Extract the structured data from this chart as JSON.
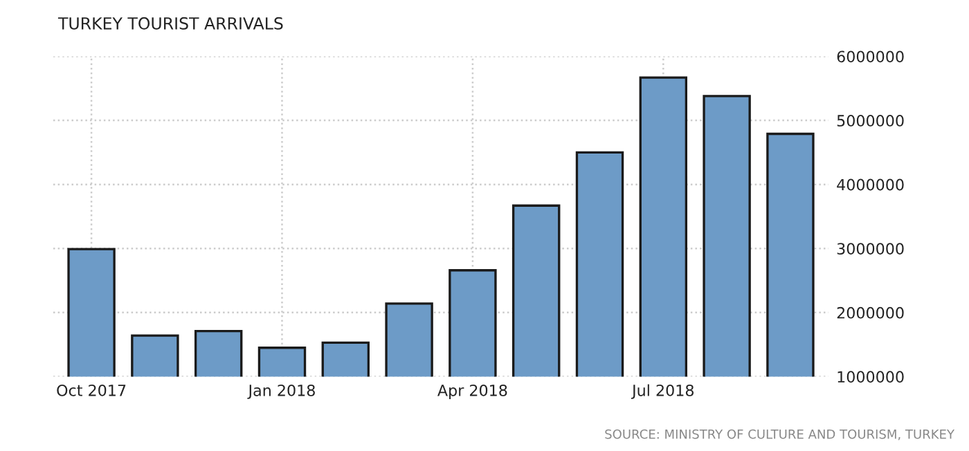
{
  "chart_data": {
    "type": "bar",
    "title": "TURKEY TOURIST ARRIVALS",
    "categories": [
      "Oct 2017",
      null,
      null,
      "Jan 2018",
      null,
      null,
      "Apr 2018",
      null,
      null,
      "Jul 2018",
      null,
      null
    ],
    "values": [
      2990000,
      1640000,
      1710000,
      1450000,
      1530000,
      2140000,
      2660000,
      3670000,
      4500000,
      5670000,
      5380000,
      4790000
    ],
    "color": "#6d9bc7",
    "ylim": [
      1000000,
      6000000
    ],
    "yticks": [
      1000000,
      2000000,
      3000000,
      4000000,
      5000000,
      6000000
    ],
    "grid": true,
    "annotations": [
      "SOURCE: MINISTRY OF CULTURE AND TOURISM, TURKEY"
    ]
  }
}
